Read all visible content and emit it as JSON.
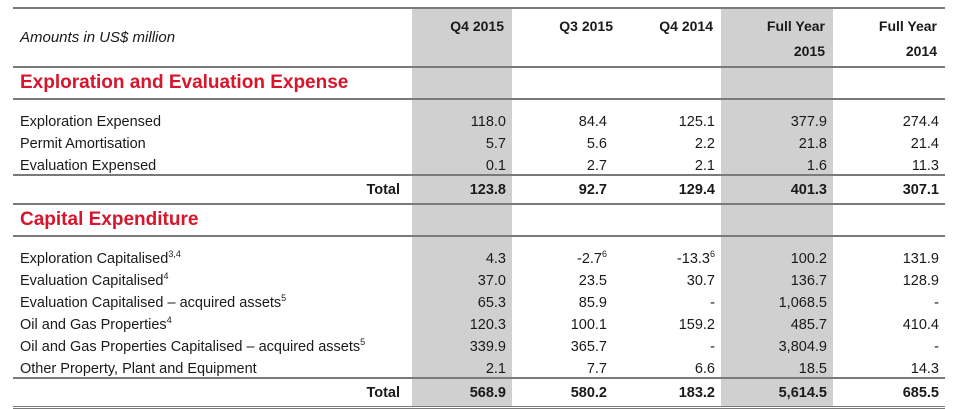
{
  "header": {
    "unit_label": "Amounts in US$ million",
    "columns": [
      "Q4 2015",
      "Q3 2015",
      "Q4 2014",
      "Full Year 2015",
      "Full Year 2014"
    ],
    "col_q4_2015": "Q4 2015",
    "col_q3_2015": "Q3 2015",
    "col_q4_2014": "Q4 2014",
    "col_fy2015_line1": "Full Year",
    "col_fy2015_line2": "2015",
    "col_fy2014_line1": "Full Year",
    "col_fy2014_line2": "2014"
  },
  "exploration": {
    "title": "Exploration and Evaluation Expense",
    "rows": [
      {
        "label": "Exploration Expensed",
        "sup": "",
        "values": [
          "118.0",
          "84.4",
          "125.1",
          "377.9",
          "274.4"
        ]
      },
      {
        "label": "Permit Amortisation",
        "sup": "",
        "values": [
          "5.7",
          "5.6",
          "2.2",
          "21.8",
          "21.4"
        ]
      },
      {
        "label": "Evaluation Expensed",
        "sup": "",
        "values": [
          "0.1",
          "2.7",
          "2.1",
          "1.6",
          "11.3"
        ]
      }
    ],
    "total": {
      "label": "Total",
      "values": [
        "123.8",
        "92.7",
        "129.4",
        "401.3",
        "307.1"
      ]
    }
  },
  "capex": {
    "title": "Capital Expenditure",
    "rows": [
      {
        "label": "Exploration Capitalised",
        "sup": "3,4",
        "values": [
          "4.3",
          "-2.7",
          "-13.3",
          "100.2",
          "131.9"
        ],
        "value_sups": [
          "",
          "6",
          "6",
          "",
          ""
        ]
      },
      {
        "label": "Evaluation Capitalised",
        "sup": "4",
        "values": [
          "37.0",
          "23.5",
          "30.7",
          "136.7",
          "128.9"
        ],
        "value_sups": [
          "",
          "",
          "",
          "",
          ""
        ]
      },
      {
        "label": "Evaluation Capitalised – acquired assets",
        "sup": "5",
        "values": [
          "65.3",
          "85.9",
          "-",
          "1,068.5",
          "-"
        ],
        "value_sups": [
          "",
          "",
          "",
          "",
          ""
        ]
      },
      {
        "label": "Oil and Gas Properties",
        "sup": "4",
        "values": [
          "120.3",
          "100.1",
          "159.2",
          "485.7",
          "410.4"
        ],
        "value_sups": [
          "",
          "",
          "",
          "",
          ""
        ]
      },
      {
        "label": "Oil and Gas Properties Capitalised – acquired assets",
        "sup": "5",
        "values": [
          "339.9",
          "365.7",
          "-",
          "3,804.9",
          "-"
        ],
        "value_sups": [
          "",
          "",
          "",
          "",
          ""
        ]
      },
      {
        "label": "Other Property, Plant and Equipment",
        "sup": "",
        "values": [
          "2.1",
          "7.7",
          "6.6",
          "18.5",
          "14.3"
        ],
        "value_sups": [
          "",
          "",
          "",
          "",
          ""
        ]
      }
    ],
    "total": {
      "label": "Total",
      "values": [
        "568.9",
        "580.2",
        "183.2",
        "5,614.5",
        "685.5"
      ]
    }
  },
  "colors": {
    "section_title": "#d7152b",
    "shaded_column": "#d0d0d0",
    "rule": "#7a7a7a"
  }
}
